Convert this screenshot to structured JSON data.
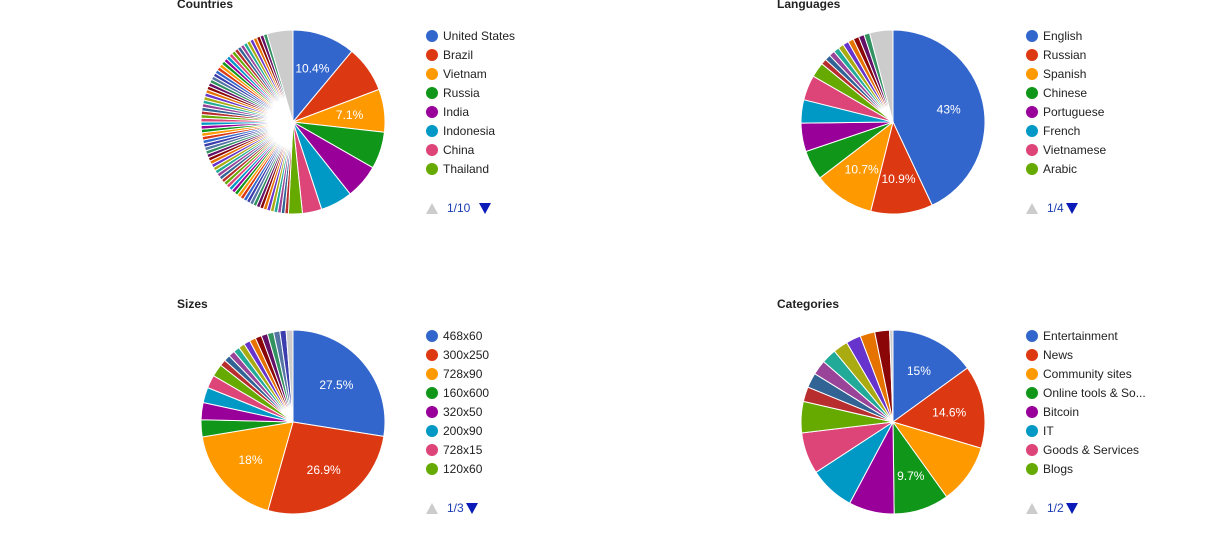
{
  "chart_data": [
    {
      "type": "pie",
      "title": "Countries",
      "legend": [
        "United States",
        "Brazil",
        "Vietnam",
        "Russia",
        "India",
        "Indonesia",
        "China",
        "Thailand"
      ],
      "values": [
        10.4,
        7.7,
        7.1,
        6.1,
        5.7,
        5.3,
        3.2,
        2.3
      ],
      "slice_labels": [
        "10.4%",
        "",
        "7.1%",
        "",
        "",
        "",
        "",
        ""
      ],
      "small_slices": {
        "count": 70,
        "share_each": 0.6,
        "other_share": 4.3
      },
      "pager": {
        "page": "1/10"
      }
    },
    {
      "type": "pie",
      "title": "Languages",
      "legend": [
        "English",
        "Russian",
        "Spanish",
        "Chinese",
        "Portuguese",
        "French",
        "Vietnamese",
        "Arabic"
      ],
      "values": [
        43,
        10.9,
        10.7,
        5.2,
        5.0,
        4.1,
        4.4,
        2.6
      ],
      "slice_labels": [
        "43%",
        "10.9%",
        "10.7%",
        "",
        "",
        "",
        "",
        ""
      ],
      "small_slices": {
        "count": 10,
        "share_each": 1.0,
        "other_share": 4.1
      },
      "pager": {
        "page": "1/4"
      }
    },
    {
      "type": "pie",
      "title": "Sizes",
      "legend": [
        "468x60",
        "300x250",
        "728x90",
        "160x600",
        "320x50",
        "200x90",
        "728x15",
        "120x60"
      ],
      "values": [
        27.5,
        26.9,
        18,
        3.0,
        3.0,
        2.7,
        2.3,
        2.2
      ],
      "slice_labels": [
        "27.5%",
        "26.9%",
        "18%",
        "",
        "",
        "",
        "",
        ""
      ],
      "small_slices": {
        "count": 12,
        "share_each": 1.1,
        "other_share": 1.2
      },
      "pager": {
        "page": "1/3"
      }
    },
    {
      "type": "pie",
      "title": "Categories",
      "legend": [
        "Entertainment",
        "News",
        "Community sites",
        "Online tools & So...",
        "Bitcoin",
        "IT",
        "Goods & Services",
        "Blogs"
      ],
      "values": [
        15,
        14.6,
        10.5,
        9.7,
        8.0,
        8.0,
        7.3,
        5.5
      ],
      "slice_labels": [
        "15%",
        "14.6%",
        "",
        "9.7%",
        "",
        "",
        "",
        ""
      ],
      "small_slices": {
        "count": 8,
        "share_each": 2.6,
        "other_share": 0.6
      },
      "pager": {
        "page": "1/2"
      }
    }
  ],
  "palette": [
    "#3366cc",
    "#dc3912",
    "#ff9900",
    "#109618",
    "#990099",
    "#0099c6",
    "#dd4477",
    "#66aa00",
    "#b82e2e",
    "#316395",
    "#994499",
    "#22aa99",
    "#aaaa11",
    "#6633cc",
    "#e67300",
    "#8b0707",
    "#651067",
    "#329262",
    "#5574a6",
    "#3b3eac"
  ],
  "other_color": "#cccccc",
  "colors": {
    "pager_next": "#0b1bb8",
    "pager_prev_disabled": "#cccccc",
    "pager_text": "#1a3bb0"
  }
}
